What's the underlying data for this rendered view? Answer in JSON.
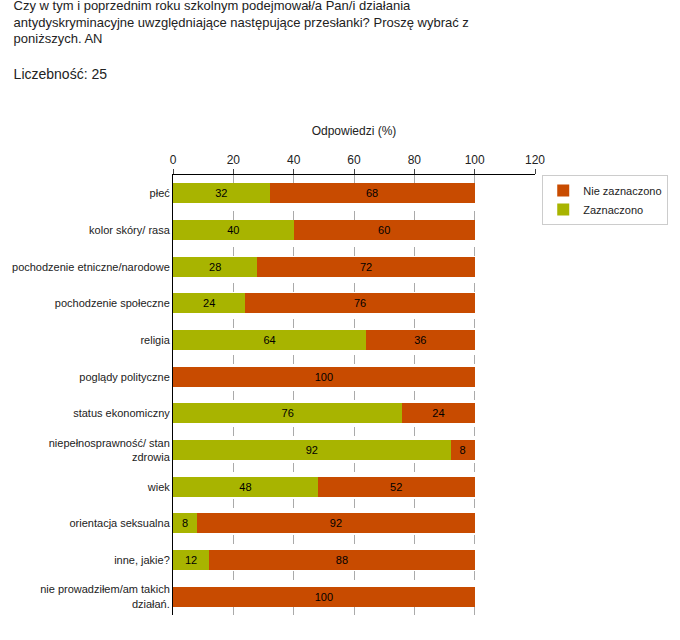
{
  "chart_data": {
    "type": "bar",
    "orientation": "horizontal",
    "stacked": true,
    "title": "Czy w tym i poprzednim roku szkolnym podejmował/a Pan/i działania\nantydyskryminacyjne uwzględniające następujące przesłanki? Proszę wybrać z\nponiższych. AN",
    "subtitle": "Liczebność: 25",
    "xlabel": "Odpowiedzi (%)",
    "categories": [
      "płeć",
      "kolor skóry/ rasa",
      "pochodzenie etniczne/narodowe",
      "pochodzenie społeczne",
      "religia",
      "poglądy polityczne",
      "status ekonomiczny",
      "niepełnosprawność/ stan\nzdrowia",
      "wiek",
      "orientacja seksualna",
      "inne, jakie?",
      "nie prowadziłem/am takich\ndziałań."
    ],
    "series": [
      {
        "name": "Zaznaczono",
        "color": "#a8b400",
        "values": [
          32,
          40,
          28,
          24,
          64,
          0,
          76,
          92,
          48,
          8,
          12,
          0
        ]
      },
      {
        "name": "Nie zaznaczono",
        "color": "#c84b00",
        "values": [
          68,
          60,
          72,
          76,
          36,
          100,
          24,
          8,
          52,
          92,
          88,
          100
        ]
      }
    ],
    "xlim": [
      0,
      120
    ],
    "xticks": [
      0,
      20,
      40,
      60,
      80,
      100,
      120
    ],
    "grid": true,
    "legend": "right",
    "data_labels": true
  }
}
